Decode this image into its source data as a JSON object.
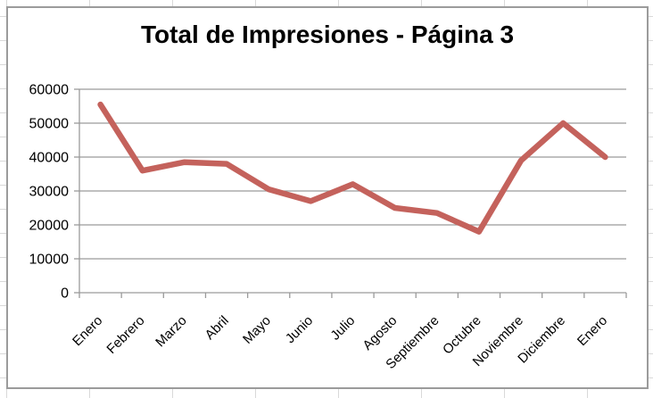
{
  "chart_data": {
    "type": "line",
    "title": "Total de Impresiones - Página 3",
    "categories": [
      "Enero",
      "Febrero",
      "Marzo",
      "Abril",
      "Mayo",
      "Junio",
      "Julio",
      "Agosto",
      "Septiembre",
      "Octubre",
      "Noviembre",
      "Diciembre",
      "Enero"
    ],
    "values": [
      55500,
      36000,
      38500,
      38000,
      30500,
      27000,
      32000,
      25000,
      23500,
      18000,
      39000,
      50000,
      40000
    ],
    "xlabel": "",
    "ylabel": "",
    "ylim": [
      0,
      60000
    ],
    "y_ticks": [
      0,
      10000,
      20000,
      30000,
      40000,
      50000,
      60000
    ],
    "y_tick_labels": [
      "0",
      "10000",
      "20000",
      "30000",
      "40000",
      "50000",
      "60000"
    ],
    "x_tick_rotation": -45,
    "grid": true,
    "legend": false,
    "colors": {
      "line": "#c4625c",
      "gridline": "#9a9a9a",
      "axis": "#9a9a9a",
      "title": "#000000",
      "chart_border": "#9b9b9b",
      "sheet_gridline": "#d9d9d9"
    }
  }
}
